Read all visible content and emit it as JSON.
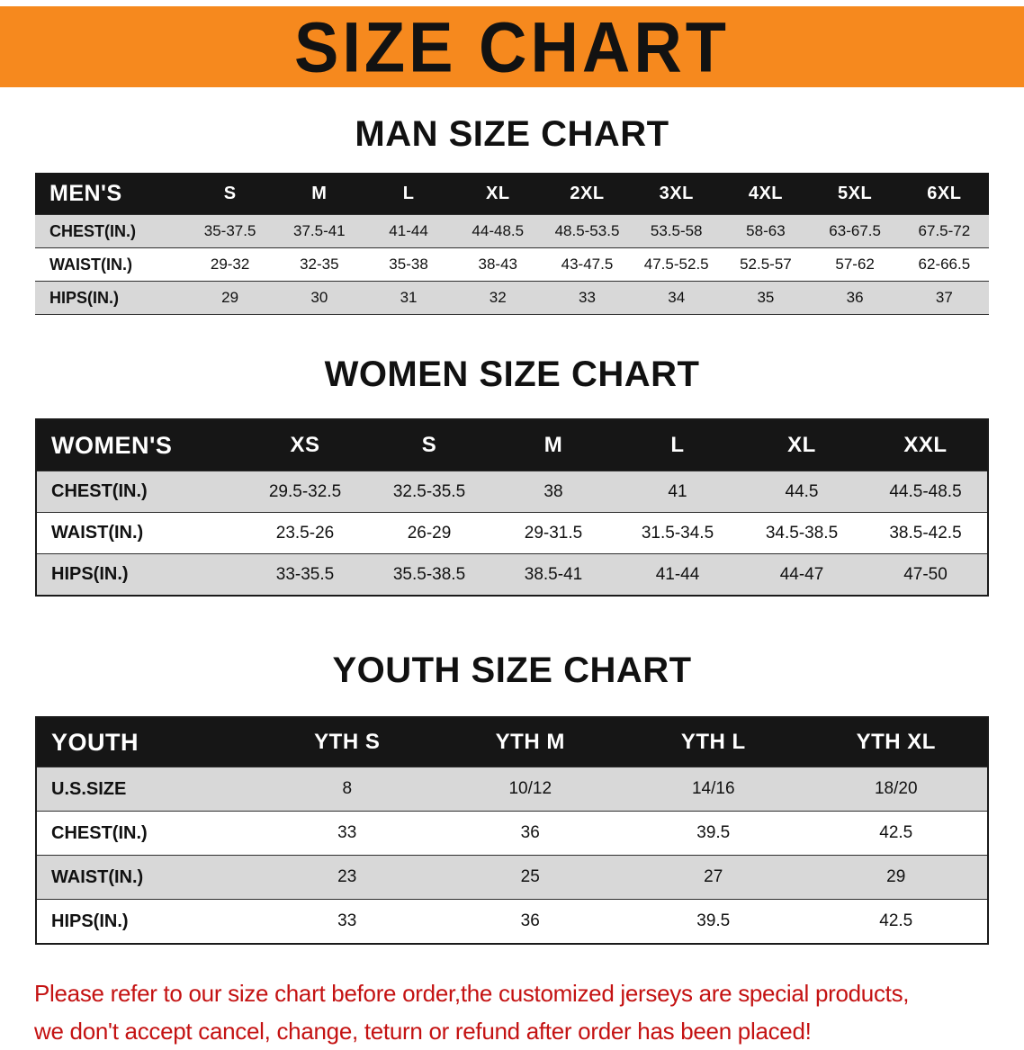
{
  "banner": {
    "title": "SIZE CHART"
  },
  "colors": {
    "banner_bg": "#F6891E",
    "header_bar_bg": "#161616",
    "row_alt_bg": "#D8D8D8",
    "disclaimer_red": "#C41212"
  },
  "sections": [
    {
      "heading": "MAN SIZE CHART",
      "table": {
        "corner_label": "MEN'S",
        "columns": [
          "S",
          "M",
          "L",
          "XL",
          "2XL",
          "3XL",
          "4XL",
          "5XL",
          "6XL"
        ],
        "rows": [
          {
            "label": "CHEST(IN.)",
            "values": [
              "35-37.5",
              "37.5-41",
              "41-44",
              "44-48.5",
              "48.5-53.5",
              "53.5-58",
              "58-63",
              "63-67.5",
              "67.5-72"
            ]
          },
          {
            "label": "WAIST(IN.)",
            "values": [
              "29-32",
              "32-35",
              "35-38",
              "38-43",
              "43-47.5",
              "47.5-52.5",
              "52.5-57",
              "57-62",
              "62-66.5"
            ]
          },
          {
            "label": "HIPS(IN.)",
            "values": [
              "29",
              "30",
              "31",
              "32",
              "33",
              "34",
              "35",
              "36",
              "37"
            ]
          }
        ]
      }
    },
    {
      "heading": "WOMEN SIZE CHART",
      "table": {
        "corner_label": "WOMEN'S",
        "columns": [
          "XS",
          "S",
          "M",
          "L",
          "XL",
          "XXL"
        ],
        "rows": [
          {
            "label": "CHEST(IN.)",
            "values": [
              "29.5-32.5",
              "32.5-35.5",
              "38",
              "41",
              "44.5",
              "44.5-48.5"
            ]
          },
          {
            "label": "WAIST(IN.)",
            "values": [
              "23.5-26",
              "26-29",
              "29-31.5",
              "31.5-34.5",
              "34.5-38.5",
              "38.5-42.5"
            ]
          },
          {
            "label": "HIPS(IN.)",
            "values": [
              "33-35.5",
              "35.5-38.5",
              "38.5-41",
              "41-44",
              "44-47",
              "47-50"
            ]
          }
        ]
      }
    },
    {
      "heading": "YOUTH SIZE CHART",
      "table": {
        "corner_label": "YOUTH",
        "columns": [
          "YTH S",
          "YTH M",
          "YTH L",
          "YTH XL"
        ],
        "rows": [
          {
            "label": "U.S.SIZE",
            "values": [
              "8",
              "10/12",
              "14/16",
              "18/20"
            ]
          },
          {
            "label": "CHEST(IN.)",
            "values": [
              "33",
              "36",
              "39.5",
              "42.5"
            ]
          },
          {
            "label": "WAIST(IN.)",
            "values": [
              "23",
              "25",
              "27",
              "29"
            ]
          },
          {
            "label": "HIPS(IN.)",
            "values": [
              "33",
              "36",
              "39.5",
              "42.5"
            ]
          }
        ]
      }
    }
  ],
  "disclaimer": {
    "lines": [
      "Please refer to our size chart before order,the customized jerseys are special products,",
      "we don't accept cancel, change, teturn or refund after order has been placed!"
    ]
  }
}
